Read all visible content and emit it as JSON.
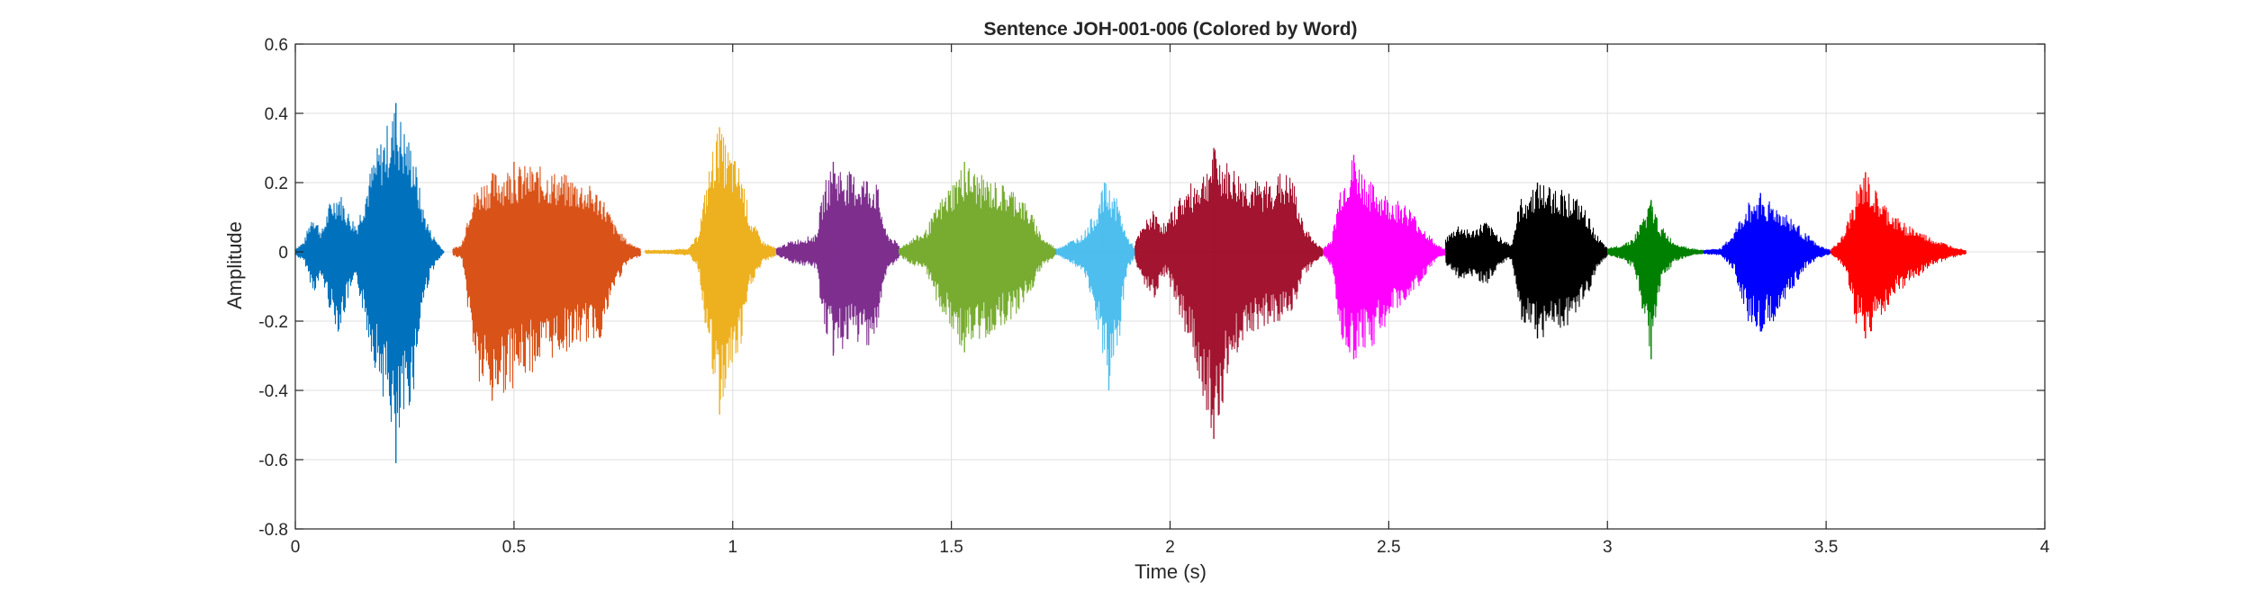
{
  "chart_data": {
    "type": "area",
    "title": "Sentence JOH-001-006 (Colored by Word)",
    "xlabel": "Time (s)",
    "ylabel": "Amplitude",
    "xlim": [
      0,
      4
    ],
    "ylim": [
      -0.8,
      0.6
    ],
    "xticks": [
      0,
      0.5,
      1,
      1.5,
      2,
      2.5,
      3,
      3.5,
      4
    ],
    "xtick_labels": [
      "0",
      "0.5",
      "1",
      "1.5",
      "2",
      "2.5",
      "3",
      "3.5",
      "4"
    ],
    "yticks": [
      0.6,
      0.4,
      0.2,
      0,
      -0.2,
      -0.4,
      -0.6,
      -0.8
    ],
    "ytick_labels": [
      "0.6",
      "0.4",
      "0.2",
      "0",
      "-0.2",
      "-0.4",
      "-0.6",
      "-0.8"
    ],
    "grid": true,
    "series": [
      {
        "color": "#0072BD",
        "start": 0.0,
        "end": 0.34,
        "pos_peak": 0.43,
        "neg_peak": -0.61,
        "envelope": [
          [
            0.0,
            0.01,
            -0.01
          ],
          [
            0.02,
            0.03,
            -0.03
          ],
          [
            0.04,
            0.12,
            -0.12
          ],
          [
            0.06,
            0.06,
            -0.08
          ],
          [
            0.08,
            0.15,
            -0.18
          ],
          [
            0.1,
            0.18,
            -0.24
          ],
          [
            0.12,
            0.12,
            -0.14
          ],
          [
            0.14,
            0.08,
            -0.09
          ],
          [
            0.16,
            0.18,
            -0.22
          ],
          [
            0.18,
            0.28,
            -0.33
          ],
          [
            0.2,
            0.34,
            -0.42
          ],
          [
            0.22,
            0.4,
            -0.52
          ],
          [
            0.23,
            0.43,
            -0.61
          ],
          [
            0.25,
            0.36,
            -0.5
          ],
          [
            0.27,
            0.3,
            -0.4
          ],
          [
            0.29,
            0.14,
            -0.16
          ],
          [
            0.31,
            0.06,
            -0.06
          ],
          [
            0.33,
            0.02,
            -0.02
          ],
          [
            0.34,
            0.0,
            0.0
          ]
        ]
      },
      {
        "color": "#D95319",
        "start": 0.36,
        "end": 0.79,
        "pos_peak": 0.26,
        "neg_peak": -0.43,
        "envelope": [
          [
            0.36,
            0.01,
            -0.01
          ],
          [
            0.38,
            0.02,
            -0.02
          ],
          [
            0.4,
            0.15,
            -0.24
          ],
          [
            0.42,
            0.2,
            -0.4
          ],
          [
            0.45,
            0.23,
            -0.43
          ],
          [
            0.5,
            0.25,
            -0.39
          ],
          [
            0.55,
            0.25,
            -0.34
          ],
          [
            0.6,
            0.23,
            -0.3
          ],
          [
            0.65,
            0.21,
            -0.27
          ],
          [
            0.7,
            0.17,
            -0.25
          ],
          [
            0.73,
            0.08,
            -0.1
          ],
          [
            0.76,
            0.03,
            -0.03
          ],
          [
            0.79,
            0.01,
            -0.01
          ]
        ]
      },
      {
        "color": "#EDB120",
        "start": 0.8,
        "end": 1.1,
        "pos_peak": 0.36,
        "neg_peak": -0.47,
        "envelope": [
          [
            0.8,
            0.005,
            -0.005
          ],
          [
            0.85,
            0.005,
            -0.005
          ],
          [
            0.9,
            0.01,
            -0.01
          ],
          [
            0.92,
            0.05,
            -0.05
          ],
          [
            0.94,
            0.2,
            -0.25
          ],
          [
            0.96,
            0.34,
            -0.44
          ],
          [
            0.97,
            0.36,
            -0.47
          ],
          [
            0.99,
            0.3,
            -0.38
          ],
          [
            1.02,
            0.24,
            -0.28
          ],
          [
            1.04,
            0.1,
            -0.1
          ],
          [
            1.07,
            0.03,
            -0.03
          ],
          [
            1.1,
            0.01,
            -0.01
          ]
        ]
      },
      {
        "color": "#7E2F8E",
        "start": 1.1,
        "end": 1.38,
        "pos_peak": 0.26,
        "neg_peak": -0.3,
        "envelope": [
          [
            1.1,
            0.01,
            -0.01
          ],
          [
            1.13,
            0.03,
            -0.03
          ],
          [
            1.16,
            0.04,
            -0.04
          ],
          [
            1.19,
            0.05,
            -0.05
          ],
          [
            1.21,
            0.2,
            -0.24
          ],
          [
            1.23,
            0.26,
            -0.3
          ],
          [
            1.27,
            0.23,
            -0.27
          ],
          [
            1.31,
            0.22,
            -0.27
          ],
          [
            1.33,
            0.2,
            -0.25
          ],
          [
            1.35,
            0.06,
            -0.06
          ],
          [
            1.38,
            0.02,
            -0.02
          ]
        ]
      },
      {
        "color": "#77AC30",
        "start": 1.38,
        "end": 1.74,
        "pos_peak": 0.26,
        "neg_peak": -0.29,
        "envelope": [
          [
            1.38,
            0.01,
            -0.01
          ],
          [
            1.41,
            0.04,
            -0.04
          ],
          [
            1.44,
            0.06,
            -0.06
          ],
          [
            1.47,
            0.14,
            -0.16
          ],
          [
            1.5,
            0.2,
            -0.24
          ],
          [
            1.53,
            0.26,
            -0.29
          ],
          [
            1.57,
            0.22,
            -0.26
          ],
          [
            1.61,
            0.2,
            -0.22
          ],
          [
            1.65,
            0.18,
            -0.18
          ],
          [
            1.68,
            0.12,
            -0.12
          ],
          [
            1.71,
            0.04,
            -0.04
          ],
          [
            1.74,
            0.01,
            -0.01
          ]
        ]
      },
      {
        "color": "#4DBEEE",
        "start": 1.74,
        "end": 1.92,
        "pos_peak": 0.2,
        "neg_peak": -0.4,
        "envelope": [
          [
            1.74,
            0.01,
            -0.01
          ],
          [
            1.77,
            0.03,
            -0.03
          ],
          [
            1.8,
            0.05,
            -0.06
          ],
          [
            1.83,
            0.12,
            -0.2
          ],
          [
            1.85,
            0.2,
            -0.35
          ],
          [
            1.86,
            0.19,
            -0.4
          ],
          [
            1.88,
            0.15,
            -0.3
          ],
          [
            1.9,
            0.05,
            -0.06
          ],
          [
            1.92,
            0.01,
            -0.01
          ]
        ]
      },
      {
        "color": "#A2142F",
        "start": 1.92,
        "end": 2.35,
        "pos_peak": 0.3,
        "neg_peak": -0.54,
        "envelope": [
          [
            1.92,
            0.03,
            -0.03
          ],
          [
            1.94,
            0.08,
            -0.1
          ],
          [
            1.96,
            0.12,
            -0.14
          ],
          [
            1.99,
            0.08,
            -0.06
          ],
          [
            2.02,
            0.16,
            -0.18
          ],
          [
            2.05,
            0.2,
            -0.3
          ],
          [
            2.08,
            0.24,
            -0.45
          ],
          [
            2.1,
            0.3,
            -0.54
          ],
          [
            2.13,
            0.26,
            -0.38
          ],
          [
            2.17,
            0.22,
            -0.24
          ],
          [
            2.21,
            0.2,
            -0.22
          ],
          [
            2.25,
            0.23,
            -0.2
          ],
          [
            2.28,
            0.22,
            -0.18
          ],
          [
            2.3,
            0.1,
            -0.08
          ],
          [
            2.33,
            0.03,
            -0.03
          ],
          [
            2.35,
            0.01,
            -0.01
          ]
        ]
      },
      {
        "color": "#FF00FF",
        "start": 2.35,
        "end": 2.63,
        "pos_peak": 0.28,
        "neg_peak": -0.31,
        "envelope": [
          [
            2.35,
            0.01,
            -0.01
          ],
          [
            2.37,
            0.04,
            -0.05
          ],
          [
            2.39,
            0.2,
            -0.26
          ],
          [
            2.42,
            0.28,
            -0.31
          ],
          [
            2.46,
            0.2,
            -0.28
          ],
          [
            2.5,
            0.16,
            -0.2
          ],
          [
            2.54,
            0.14,
            -0.14
          ],
          [
            2.58,
            0.07,
            -0.08
          ],
          [
            2.61,
            0.02,
            -0.02
          ],
          [
            2.63,
            0.01,
            -0.01
          ]
        ]
      },
      {
        "color": "#000000",
        "start": 2.63,
        "end": 3.0,
        "pos_peak": 0.2,
        "neg_peak": -0.25,
        "envelope": [
          [
            2.63,
            0.04,
            -0.04
          ],
          [
            2.66,
            0.08,
            -0.08
          ],
          [
            2.69,
            0.06,
            -0.07
          ],
          [
            2.72,
            0.09,
            -0.1
          ],
          [
            2.75,
            0.05,
            -0.04
          ],
          [
            2.78,
            0.02,
            -0.02
          ],
          [
            2.8,
            0.15,
            -0.2
          ],
          [
            2.84,
            0.2,
            -0.25
          ],
          [
            2.88,
            0.19,
            -0.24
          ],
          [
            2.92,
            0.17,
            -0.2
          ],
          [
            2.95,
            0.12,
            -0.15
          ],
          [
            2.98,
            0.04,
            -0.04
          ],
          [
            3.0,
            0.01,
            -0.01
          ]
        ]
      },
      {
        "color": "#008000",
        "start": 3.0,
        "end": 3.22,
        "pos_peak": 0.15,
        "neg_peak": -0.31,
        "envelope": [
          [
            3.0,
            0.01,
            -0.01
          ],
          [
            3.03,
            0.02,
            -0.02
          ],
          [
            3.06,
            0.04,
            -0.05
          ],
          [
            3.08,
            0.1,
            -0.18
          ],
          [
            3.1,
            0.15,
            -0.31
          ],
          [
            3.12,
            0.08,
            -0.1
          ],
          [
            3.15,
            0.03,
            -0.03
          ],
          [
            3.19,
            0.01,
            -0.01
          ],
          [
            3.22,
            0.005,
            -0.005
          ]
        ]
      },
      {
        "color": "#0000FF",
        "start": 3.22,
        "end": 3.51,
        "pos_peak": 0.17,
        "neg_peak": -0.23,
        "envelope": [
          [
            3.22,
            0.005,
            -0.005
          ],
          [
            3.26,
            0.01,
            -0.01
          ],
          [
            3.29,
            0.06,
            -0.06
          ],
          [
            3.32,
            0.14,
            -0.2
          ],
          [
            3.35,
            0.17,
            -0.23
          ],
          [
            3.39,
            0.13,
            -0.2
          ],
          [
            3.42,
            0.1,
            -0.12
          ],
          [
            3.45,
            0.06,
            -0.05
          ],
          [
            3.48,
            0.02,
            -0.02
          ],
          [
            3.51,
            0.005,
            -0.005
          ]
        ]
      },
      {
        "color": "#FF0000",
        "start": 3.51,
        "end": 3.82,
        "pos_peak": 0.23,
        "neg_peak": -0.25,
        "envelope": [
          [
            3.51,
            0.005,
            -0.005
          ],
          [
            3.54,
            0.05,
            -0.05
          ],
          [
            3.57,
            0.18,
            -0.22
          ],
          [
            3.59,
            0.23,
            -0.25
          ],
          [
            3.62,
            0.16,
            -0.2
          ],
          [
            3.66,
            0.1,
            -0.12
          ],
          [
            3.7,
            0.07,
            -0.08
          ],
          [
            3.74,
            0.04,
            -0.04
          ],
          [
            3.78,
            0.02,
            -0.02
          ],
          [
            3.82,
            0.005,
            -0.005
          ]
        ]
      }
    ]
  },
  "colors": {
    "background": "#ffffff",
    "axes": "#262626",
    "grid": "#dfdfdf"
  }
}
